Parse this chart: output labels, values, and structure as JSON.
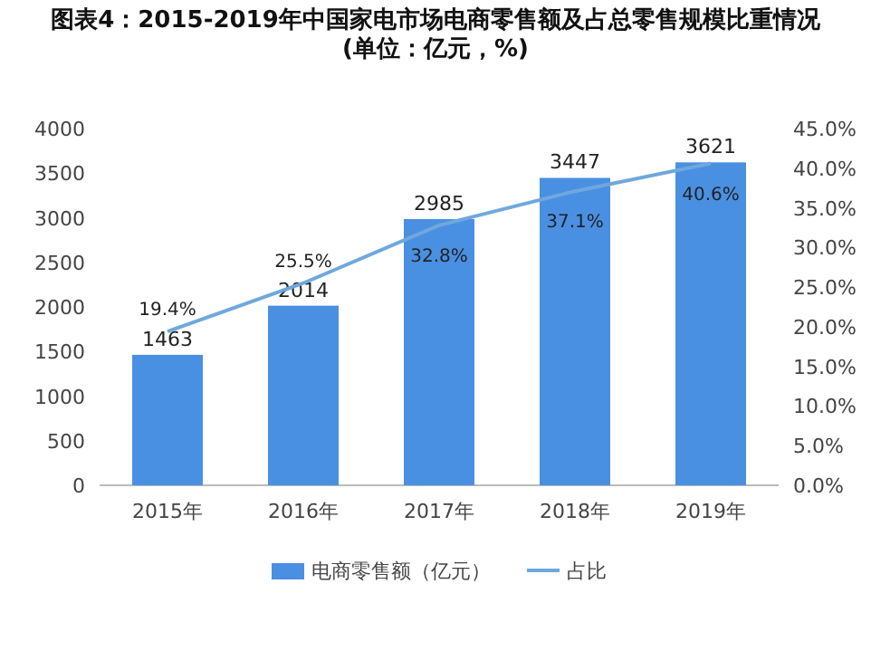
{
  "chart_data": {
    "type": "bar",
    "title": "图表4：2015-2019年中国家电市场电商零售额及占总零售规模比重情况(单位：亿元，%)",
    "categories": [
      "2015年",
      "2016年",
      "2017年",
      "2018年",
      "2019年"
    ],
    "series": [
      {
        "name": "电商零售额（亿元）",
        "color": "#4a90e2",
        "values": [
          1463,
          2014,
          2985,
          3447,
          3621
        ],
        "value_labels": [
          "1463",
          "2014",
          "2985",
          "3447",
          "3621"
        ]
      },
      {
        "name": "占比",
        "type": "line",
        "axis": "y2",
        "color": "#6fa8dc",
        "values": [
          19.4,
          25.5,
          32.8,
          37.1,
          40.6
        ],
        "value_labels": [
          "19.4%",
          "25.5%",
          "32.8%",
          "37.1%",
          "40.6%"
        ]
      }
    ],
    "ylim": [
      0,
      4000
    ],
    "yticks": [
      0,
      500,
      1000,
      1500,
      2000,
      2500,
      3000,
      3500,
      4000
    ],
    "y2lim": [
      0,
      45
    ],
    "y2ticks": [
      {
        "value": 0,
        "label": "0.0%"
      },
      {
        "value": 5,
        "label": "5.0%"
      },
      {
        "value": 10,
        "label": "10.0%"
      },
      {
        "value": 15,
        "label": "15.0%"
      },
      {
        "value": 20,
        "label": "20.0%"
      },
      {
        "value": 25,
        "label": "25.0%"
      },
      {
        "value": 30,
        "label": "30.0%"
      },
      {
        "value": 35,
        "label": "35.0%"
      },
      {
        "value": 40,
        "label": "40.0%"
      },
      {
        "value": 45,
        "label": "45.0%"
      }
    ],
    "grid": false,
    "legend": "bottom",
    "marker": "none"
  }
}
